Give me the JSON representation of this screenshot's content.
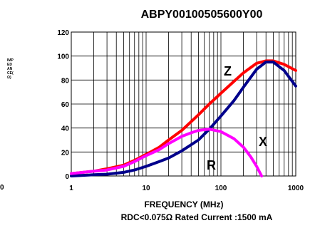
{
  "chart_data": {
    "type": "line",
    "title": "ABPY00100505600Y00",
    "ylabel": "IMPEDANCE(Ω)",
    "ylabel_lines": [
      "IMP",
      "ED",
      "AN",
      "CE(",
      "Ω)"
    ],
    "xlabel": "FREQUENCY (MHz)",
    "footer": "RDC<0.075Ω Rated Current :1500 mA",
    "x_scale": "log",
    "xlim": [
      1,
      1000
    ],
    "ylim": [
      0,
      120
    ],
    "y_ticks": [
      "0",
      "20",
      "40",
      "60",
      "80",
      "100",
      "120"
    ],
    "x_ticks": [
      "1",
      "10",
      "100",
      "1000"
    ],
    "left_edge_label": "0",
    "grid": true,
    "series": [
      {
        "name": "Z",
        "color": "#ff0000",
        "x": [
          1,
          2,
          3,
          5,
          7,
          10,
          15,
          20,
          30,
          50,
          70,
          100,
          150,
          200,
          300,
          400,
          500,
          700,
          1000
        ],
        "y": [
          2,
          4,
          6,
          9,
          13,
          18,
          24,
          30,
          38,
          51,
          60,
          69,
          79,
          86,
          94,
          96,
          96,
          93,
          88
        ]
      },
      {
        "name": "X",
        "color": "#00008b",
        "x": [
          1,
          2,
          3,
          5,
          7,
          10,
          15,
          20,
          30,
          50,
          70,
          100,
          150,
          200,
          300,
          400,
          500,
          700,
          1000
        ],
        "y": [
          0,
          1,
          1.5,
          3,
          5,
          8,
          12,
          15,
          21,
          30,
          39,
          50,
          63,
          74,
          89,
          95,
          95,
          88,
          75
        ]
      },
      {
        "name": "R",
        "color": "#ff00ff",
        "x": [
          1,
          2,
          3,
          5,
          7,
          10,
          15,
          20,
          30,
          40,
          50,
          70,
          100,
          150,
          200,
          250,
          300,
          350
        ],
        "y": [
          2,
          4,
          5,
          8,
          12,
          17,
          22,
          27,
          33,
          36,
          38,
          39,
          37,
          31,
          24,
          16,
          8,
          0
        ]
      }
    ]
  }
}
